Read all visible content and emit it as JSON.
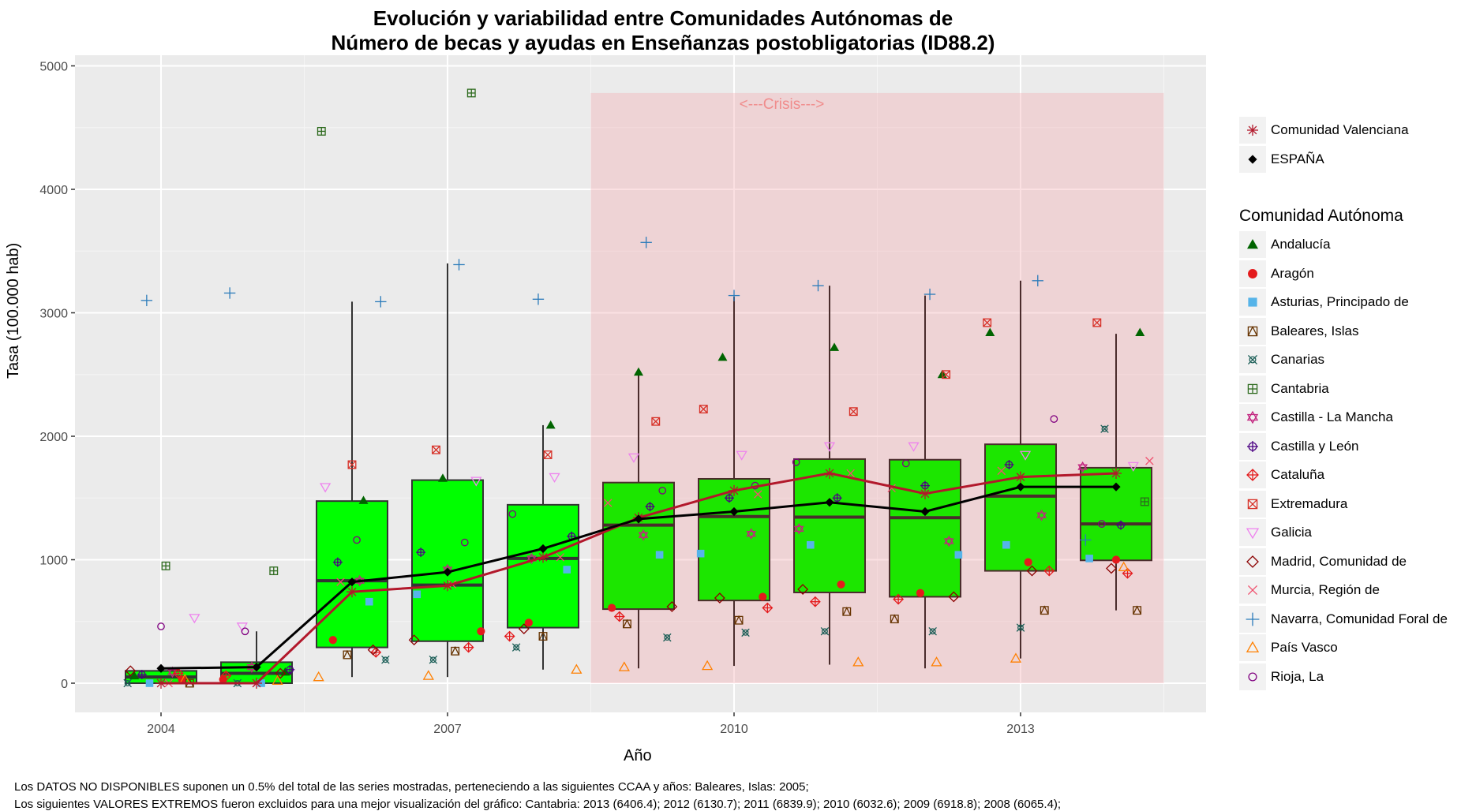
{
  "chart_data": {
    "type": "box",
    "title": [
      "Evolución y variabilidad entre Comunidades Autónomas de",
      "Número de becas y ayudas en Enseñanzas postobligatorias (ID88.2)"
    ],
    "xlabel": "Año",
    "ylabel": "Tasa (100.000 hab)",
    "xlim": [
      2003.2,
      2015.0
    ],
    "ylim": [
      -235,
      5090
    ],
    "x_ticks": [
      2004,
      2007,
      2010,
      2013
    ],
    "y_ticks": [
      0,
      1000,
      2000,
      3000,
      4000,
      5000
    ],
    "grid": true,
    "years": [
      2004,
      2005,
      2006,
      2007,
      2008,
      2009,
      2010,
      2011,
      2012,
      2013,
      2014
    ],
    "boxes": [
      {
        "year": 2004,
        "low": 0,
        "q1": 0,
        "median": 50,
        "q3": 100,
        "high": 100
      },
      {
        "year": 2005,
        "low": 0,
        "q1": 0,
        "median": 80,
        "q3": 170,
        "high": 420
      },
      {
        "year": 2006,
        "low": 50,
        "q1": 290,
        "median": 830,
        "q3": 1475,
        "high": 3090
      },
      {
        "year": 2007,
        "low": 50,
        "q1": 340,
        "median": 795,
        "q3": 1645,
        "high": 3400
      },
      {
        "year": 2008,
        "low": 110,
        "q1": 450,
        "median": 1010,
        "q3": 1445,
        "high": 2090
      },
      {
        "year": 2009,
        "low": 120,
        "q1": 600,
        "median": 1280,
        "q3": 1625,
        "high": 2520
      },
      {
        "year": 2010,
        "low": 140,
        "q1": 670,
        "median": 1350,
        "q3": 1655,
        "high": 3130
      },
      {
        "year": 2011,
        "low": 150,
        "q1": 735,
        "median": 1345,
        "q3": 1815,
        "high": 3220
      },
      {
        "year": 2012,
        "low": 120,
        "q1": 700,
        "median": 1340,
        "q3": 1810,
        "high": 3140
      },
      {
        "year": 2013,
        "low": 200,
        "q1": 910,
        "median": 1515,
        "q3": 1935,
        "high": 3260
      },
      {
        "year": 2014,
        "low": 590,
        "q1": 995,
        "median": 1290,
        "q3": 1745,
        "high": 2830
      }
    ],
    "box_fill": "#00ff00",
    "box_fill_crisis": "#1ce600",
    "series": [
      {
        "name": "ESPAÑA",
        "color": "#000000",
        "marker": "diamond",
        "values": [
          120,
          130,
          820,
          900,
          1090,
          1330,
          1390,
          1465,
          1390,
          1590,
          1590
        ]
      },
      {
        "name": "Comunidad Valenciana",
        "color": "#b2182b",
        "marker": "asterisk",
        "values": [
          0,
          0,
          740,
          790,
          1020,
          1340,
          1560,
          1700,
          1535,
          1670,
          1700
        ]
      }
    ],
    "regions": [
      {
        "name": "Andalucía",
        "color": "#006400",
        "marker": "triangle-filled",
        "values": [
          60,
          90,
          1480,
          1660,
          2090,
          2520,
          2640,
          2720,
          2500,
          2840,
          2840
        ]
      },
      {
        "name": "Aragón",
        "color": "#e41a1c",
        "marker": "circle-filled",
        "values": [
          30,
          30,
          350,
          420,
          490,
          610,
          700,
          800,
          730,
          980,
          1000
        ]
      },
      {
        "name": "Asturias, Principado de",
        "color": "#56b4e9",
        "marker": "square-filled",
        "values": [
          0,
          0,
          660,
          720,
          920,
          1040,
          1050,
          1120,
          1040,
          1120,
          1010
        ]
      },
      {
        "name": "Baleares, Islas",
        "color": "#663300",
        "marker": "square-triangle",
        "values": [
          0,
          null,
          230,
          260,
          380,
          480,
          510,
          580,
          520,
          590,
          590
        ]
      },
      {
        "name": "Canarias",
        "color": "#1b5e57",
        "marker": "square-cross",
        "values": [
          0,
          0,
          190,
          190,
          290,
          370,
          410,
          420,
          420,
          450,
          2060
        ]
      },
      {
        "name": "Cantabria",
        "color": "#2e6b1e",
        "marker": "square-plus",
        "values": [
          950,
          910,
          4470,
          4780,
          null,
          null,
          null,
          null,
          null,
          null,
          1470
        ]
      },
      {
        "name": "Castilla - La Mancha",
        "color": "#c2257f",
        "marker": "star-david",
        "values": [
          90,
          130,
          830,
          920,
          1010,
          1200,
          1210,
          1250,
          1150,
          1360,
          1750
        ]
      },
      {
        "name": "Castilla y León",
        "color": "#4b0082",
        "marker": "circle-plus",
        "values": [
          70,
          110,
          980,
          1060,
          1190,
          1430,
          1500,
          1500,
          1600,
          1770,
          1280
        ]
      },
      {
        "name": "Cataluña",
        "color": "#e41a1c",
        "marker": "diamond-plus",
        "values": [
          80,
          60,
          250,
          290,
          380,
          540,
          610,
          660,
          680,
          910,
          890
        ]
      },
      {
        "name": "Extremadura",
        "color": "#d73027",
        "marker": "square-x",
        "values": null,
        "values_est": [
          null,
          null,
          1770,
          1890,
          1850,
          2120,
          2220,
          2200,
          2500,
          2920,
          2920
        ]
      },
      {
        "name": "Galicia",
        "color": "#ee82ee",
        "marker": "triangle-down",
        "values": [
          530,
          460,
          1590,
          1640,
          1670,
          1830,
          1850,
          1920,
          1920,
          1850,
          1760
        ]
      },
      {
        "name": "Madrid, Comunidad de",
        "color": "#8b0000",
        "marker": "diamond-open",
        "values": [
          100,
          80,
          270,
          350,
          440,
          620,
          690,
          760,
          700,
          910,
          930
        ]
      },
      {
        "name": "Murcia, Región de",
        "color": "#f0506e",
        "marker": "x",
        "values": [
          0,
          0,
          820,
          800,
          1020,
          1460,
          1530,
          1700,
          1580,
          1720,
          1800
        ]
      },
      {
        "name": "Navarra, Comunidad Foral de",
        "color": "#2b7bba",
        "marker": "plus",
        "values": [
          3100,
          3160,
          3090,
          3390,
          3110,
          3570,
          3140,
          3220,
          3150,
          3260,
          1160
        ]
      },
      {
        "name": "País Vasco",
        "color": "#ff7f00",
        "marker": "triangle-open",
        "values": [
          30,
          20,
          50,
          60,
          110,
          130,
          140,
          170,
          170,
          200,
          940
        ]
      },
      {
        "name": "Rioja, La",
        "color": "#800080",
        "marker": "circle-open",
        "values": [
          460,
          420,
          1160,
          1140,
          1370,
          1560,
          1600,
          1790,
          1780,
          2140,
          1290
        ]
      }
    ],
    "annotations": [
      {
        "text": "<---Crisis--->",
        "x_range": [
          2008.5,
          2014.5
        ],
        "y_range": [
          0,
          4780
        ],
        "fill": "#f4a6ad",
        "color": "#f08080"
      }
    ],
    "legend_position": "right"
  },
  "legend": {
    "top_items": [
      {
        "label": "Comunidad Valenciana",
        "marker": "asterisk",
        "color": "#b2182b"
      },
      {
        "label": "ESPAÑA",
        "marker": "diamond",
        "color": "#000000"
      }
    ],
    "title": "Comunidad Autónoma",
    "items": [
      {
        "label": "Andalucía"
      },
      {
        "label": "Aragón"
      },
      {
        "label": "Asturias, Principado de"
      },
      {
        "label": "Baleares, Islas"
      },
      {
        "label": "Canarias"
      },
      {
        "label": "Cantabria"
      },
      {
        "label": "Castilla - La Mancha"
      },
      {
        "label": "Castilla y León"
      },
      {
        "label": "Cataluña"
      },
      {
        "label": "Extremadura"
      },
      {
        "label": "Galicia"
      },
      {
        "label": "Madrid, Comunidad de"
      },
      {
        "label": "Murcia, Región de"
      },
      {
        "label": "Navarra, Comunidad Foral de"
      },
      {
        "label": "País Vasco"
      },
      {
        "label": "Rioja, La"
      }
    ]
  },
  "notes": {
    "line1": "Los DATOS NO DISPONIBLES suponen un 0.5% del total de las series mostradas, perteneciendo a las siguientes CCAA y años: Baleares, Islas: 2005;",
    "line2": "Los siguientes VALORES EXTREMOS fueron excluidos para una mejor visualización del gráfico: Cantabria: 2013 (6406.4); 2012 (6130.7); 2011 (6839.9); 2010 (6032.6); 2009 (6918.8); 2008 (6065.4);"
  }
}
